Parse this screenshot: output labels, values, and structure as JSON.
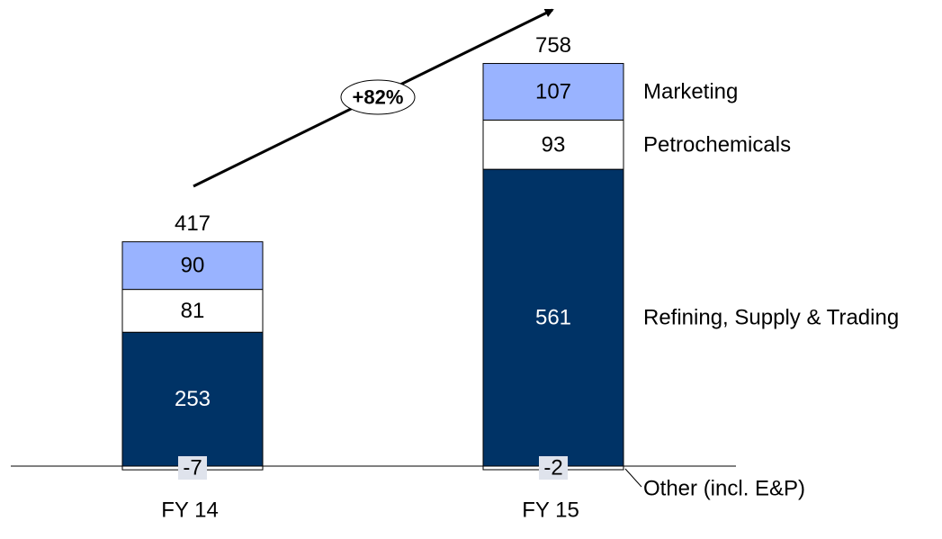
{
  "chart_data": {
    "type": "bar",
    "stacked": true,
    "categories": [
      "FY 14",
      "FY 15"
    ],
    "totals": [
      "417",
      "758"
    ],
    "series": [
      {
        "name": "Other (incl. E&P)",
        "values": [
          -7,
          -2
        ],
        "labels": [
          "-7",
          "-2"
        ],
        "color": "#ffffff"
      },
      {
        "name": "Refining, Supply & Trading",
        "values": [
          253,
          561
        ],
        "labels": [
          "253",
          "561"
        ],
        "color": "#003366"
      },
      {
        "name": "Petrochemicals",
        "values": [
          81,
          93
        ],
        "labels": [
          "81",
          "93"
        ],
        "color": "#ffffff"
      },
      {
        "name": "Marketing",
        "values": [
          90,
          107
        ],
        "labels": [
          "90",
          "107"
        ],
        "color": "#99b3ff"
      }
    ],
    "growth_label": "+82%",
    "label_chip_color": "#dfe3ec",
    "ylim": [
      -7,
      758
    ]
  }
}
